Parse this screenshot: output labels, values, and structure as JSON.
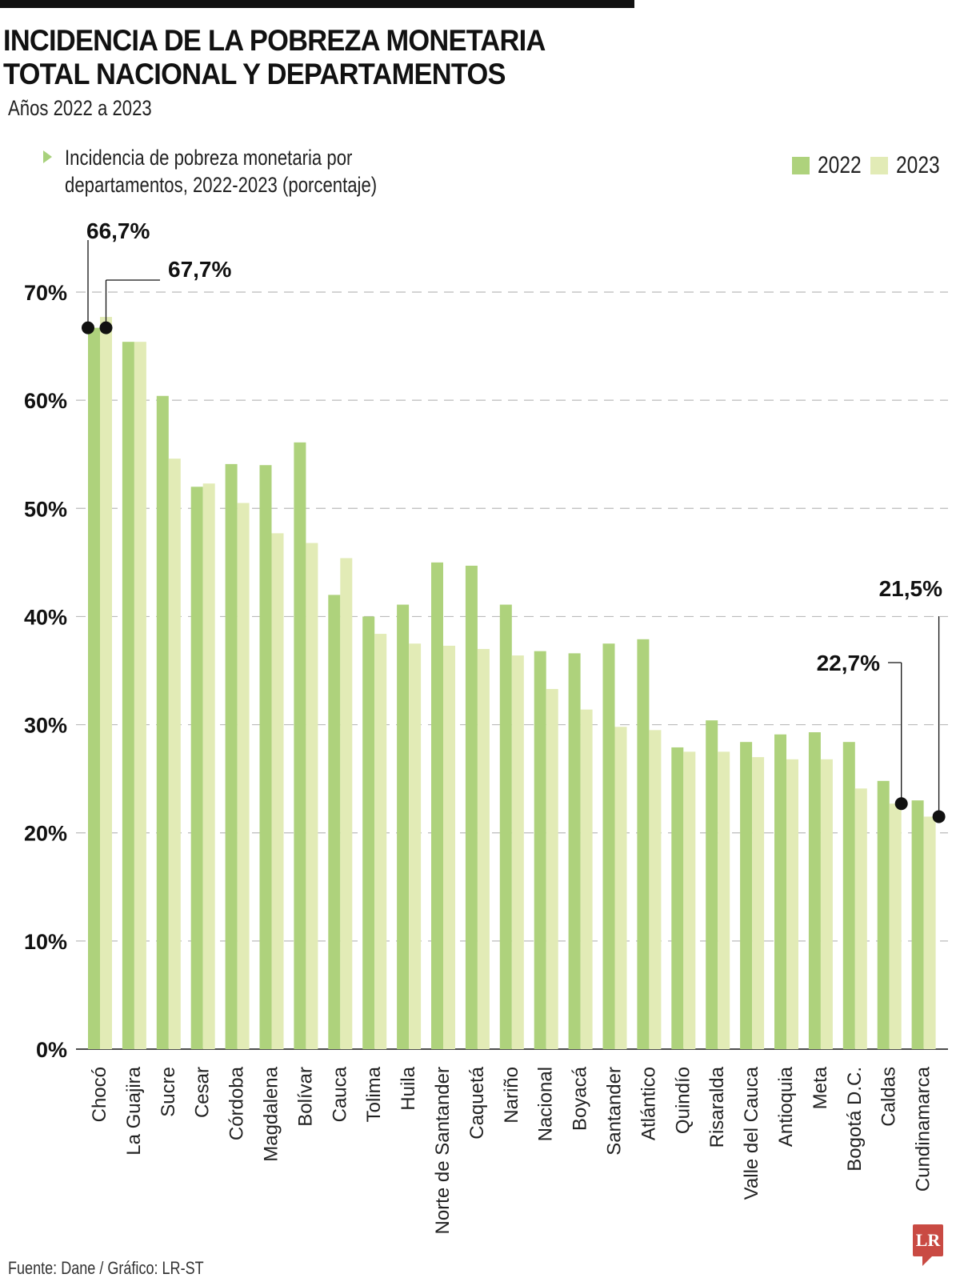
{
  "header": {
    "title_line1": "INCIDENCIA DE LA POBREZA MONETARIA",
    "title_line2": "TOTAL NACIONAL Y DEPARTAMENTOS",
    "subtitle": "Años 2022 a 2023",
    "description_line1": "Incidencia de pobreza monetaria por",
    "description_line2": "departamentos, 2022-2023 (porcentaje)"
  },
  "legend": [
    {
      "label": "2022",
      "color": "#aed27c"
    },
    {
      "label": "2023",
      "color": "#e2ebb6"
    }
  ],
  "footer": {
    "source": "Fuente: Dane / Gráfico: LR-ST",
    "logo_text": "LR",
    "logo_color": "#c94a43"
  },
  "chart_data": {
    "type": "bar",
    "title": "Incidencia de pobreza monetaria por departamentos, 2022-2023 (porcentaje)",
    "xlabel": "",
    "ylabel": "",
    "ylim": [
      0,
      70
    ],
    "yticks": [
      0,
      10,
      20,
      30,
      40,
      50,
      60,
      70
    ],
    "ytick_labels": [
      "0%",
      "10%",
      "20%",
      "30%",
      "40%",
      "50%",
      "60%",
      "70%"
    ],
    "grid": true,
    "legend_position": "top-right",
    "categories": [
      "Chocó",
      "La Guajira",
      "Sucre",
      "Cesar",
      "Córdoba",
      "Magdalena",
      "Bolívar",
      "Cauca",
      "Tolima",
      "Huila",
      "Norte de Santander",
      "Caquetá",
      "Nariño",
      "Nacional",
      "Boyacá",
      "Santander",
      "Atlántico",
      "Quindío",
      "Risaralda",
      "Valle del Cauca",
      "Antioquia",
      "Meta",
      "Bogotá D.C.",
      "Caldas",
      "Cundinamarca"
    ],
    "series": [
      {
        "name": "2022",
        "color": "#aed27c",
        "values": [
          66.7,
          65.4,
          60.4,
          52.0,
          54.1,
          54.0,
          56.1,
          42.0,
          40.0,
          41.1,
          45.0,
          44.7,
          41.1,
          36.8,
          36.6,
          37.5,
          37.9,
          27.9,
          30.4,
          28.4,
          29.1,
          29.3,
          28.4,
          24.8,
          23.0
        ]
      },
      {
        "name": "2023",
        "color": "#e2ebb6",
        "values": [
          67.7,
          65.4,
          54.6,
          52.3,
          50.5,
          47.7,
          46.8,
          45.4,
          38.4,
          37.5,
          37.3,
          37.0,
          36.4,
          33.3,
          31.4,
          29.8,
          29.5,
          27.5,
          27.5,
          27.0,
          26.8,
          26.8,
          24.1,
          22.7,
          21.5
        ]
      }
    ],
    "annotations": [
      {
        "text": "66,7%",
        "category": "Chocó",
        "series": "2022",
        "value": 66.7
      },
      {
        "text": "67,7%",
        "category": "Chocó",
        "series": "2023",
        "value": 67.7
      },
      {
        "text": "22,7%",
        "category": "Caldas",
        "series": "2023",
        "value": 22.7
      },
      {
        "text": "21,5%",
        "category": "Cundinamarca",
        "series": "2023",
        "value": 21.5
      }
    ]
  }
}
